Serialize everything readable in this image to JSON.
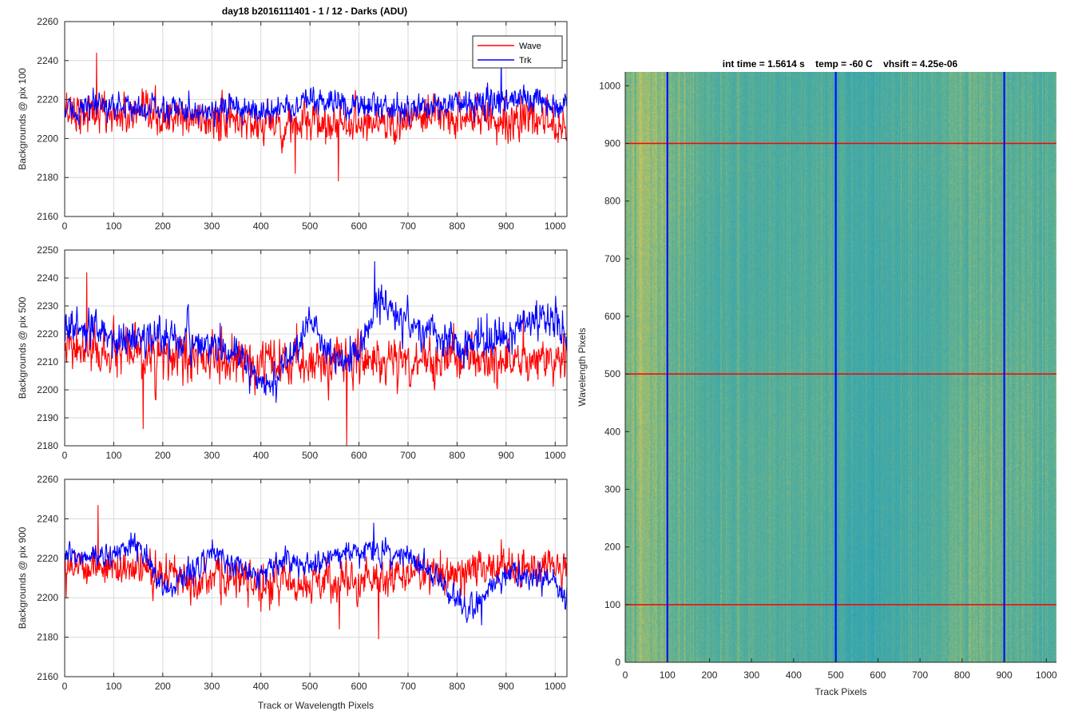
{
  "figure_title": "day18 b2016111401 - 1 / 12 - Darks (ADU)",
  "colors": {
    "wave": "#ff0000",
    "trk": "#0000ff",
    "grid": "#d9d9d9",
    "axis": "#262626",
    "image_yellow": "#c9c85a",
    "image_teal": "#2aa6b4",
    "image_green": "#5cae96"
  },
  "chart_data": [
    {
      "type": "line",
      "ylabel": "Backgrounds @ pix 100",
      "xlabel": "",
      "xlim": [
        0,
        1024
      ],
      "ylim": [
        2160,
        2260
      ],
      "xticks": [
        0,
        100,
        200,
        300,
        400,
        500,
        600,
        700,
        800,
        900,
        1000
      ],
      "yticks": [
        2160,
        2180,
        2200,
        2220,
        2240,
        2260
      ],
      "grid": true,
      "legend": "top-right",
      "series": [
        {
          "name": "Wave",
          "color": "#ff0000",
          "mean": 2210,
          "noise": 7.5,
          "profile": [
            [
              0,
              2215
            ],
            [
              100,
              2212
            ],
            [
              200,
              2210
            ],
            [
              300,
              2210
            ],
            [
              400,
              2208
            ],
            [
              500,
              2207
            ],
            [
              600,
              2209
            ],
            [
              700,
              2209
            ],
            [
              800,
              2212
            ],
            [
              900,
              2210
            ],
            [
              1024,
              2208
            ]
          ],
          "features": [
            [
              65,
              2244
            ],
            [
              558,
              2178
            ],
            [
              470,
              2182
            ]
          ]
        },
        {
          "name": "Trk",
          "color": "#0000ff",
          "mean": 2217,
          "noise": 5,
          "profile": [
            [
              0,
              2214
            ],
            [
              100,
              2217
            ],
            [
              200,
              2215
            ],
            [
              300,
              2215
            ],
            [
              400,
              2214
            ],
            [
              500,
              2218
            ],
            [
              600,
              2218
            ],
            [
              700,
              2215
            ],
            [
              800,
              2218
            ],
            [
              900,
              2220
            ],
            [
              1024,
              2217
            ]
          ],
          "features": [
            [
              890,
              2242
            ]
          ]
        }
      ]
    },
    {
      "type": "line",
      "ylabel": "Backgrounds @ pix 500",
      "xlabel": "",
      "xlim": [
        0,
        1024
      ],
      "ylim": [
        2180,
        2250
      ],
      "xticks": [
        0,
        100,
        200,
        300,
        400,
        500,
        600,
        700,
        800,
        900,
        1000
      ],
      "yticks": [
        2180,
        2190,
        2200,
        2210,
        2220,
        2230,
        2240,
        2250
      ],
      "grid": true,
      "series": [
        {
          "name": "Wave",
          "color": "#ff0000",
          "mean": 2211,
          "noise": 6,
          "profile": [
            [
              0,
              2214
            ],
            [
              100,
              2213
            ],
            [
              200,
              2211
            ],
            [
              300,
              2211
            ],
            [
              400,
              2208
            ],
            [
              500,
              2210
            ],
            [
              600,
              2211
            ],
            [
              700,
              2210
            ],
            [
              800,
              2212
            ],
            [
              900,
              2210
            ],
            [
              1024,
              2211
            ]
          ],
          "features": [
            [
              45,
              2242
            ],
            [
              575,
              2180
            ],
            [
              160,
              2186
            ]
          ]
        },
        {
          "name": "Trk",
          "color": "#0000ff",
          "mean": 2218,
          "noise": 4.5,
          "profile": [
            [
              0,
              2223
            ],
            [
              50,
              2221
            ],
            [
              100,
              2218
            ],
            [
              200,
              2219
            ],
            [
              300,
              2216
            ],
            [
              350,
              2212
            ],
            [
              400,
              2204
            ],
            [
              430,
              2202
            ],
            [
              460,
              2215
            ],
            [
              500,
              2223
            ],
            [
              550,
              2210
            ],
            [
              600,
              2214
            ],
            [
              640,
              2232
            ],
            [
              700,
              2224
            ],
            [
              800,
              2215
            ],
            [
              900,
              2220
            ],
            [
              980,
              2228
            ],
            [
              1024,
              2217
            ]
          ],
          "features": [
            [
              632,
              2246
            ],
            [
              410,
              2198
            ]
          ]
        }
      ]
    },
    {
      "type": "line",
      "ylabel": "Backgrounds @ pix 900",
      "xlabel": "Track or Wavelength Pixels",
      "xlim": [
        0,
        1024
      ],
      "ylim": [
        2160,
        2260
      ],
      "xticks": [
        0,
        100,
        200,
        300,
        400,
        500,
        600,
        700,
        800,
        900,
        1000
      ],
      "yticks": [
        2160,
        2180,
        2200,
        2220,
        2240,
        2260
      ],
      "grid": true,
      "series": [
        {
          "name": "Wave",
          "color": "#ff0000",
          "mean": 2212,
          "noise": 7,
          "profile": [
            [
              0,
              2218
            ],
            [
              100,
              2215
            ],
            [
              200,
              2212
            ],
            [
              300,
              2210
            ],
            [
              400,
              2207
            ],
            [
              500,
              2208
            ],
            [
              600,
              2208
            ],
            [
              700,
              2212
            ],
            [
              800,
              2214
            ],
            [
              900,
              2216
            ],
            [
              1024,
              2214
            ]
          ],
          "features": [
            [
              68,
              2247
            ],
            [
              640,
              2179
            ],
            [
              560,
              2184
            ]
          ]
        },
        {
          "name": "Trk",
          "color": "#0000ff",
          "mean": 2215,
          "noise": 4.5,
          "profile": [
            [
              0,
              2220
            ],
            [
              100,
              2222
            ],
            [
              150,
              2228
            ],
            [
              200,
              2204
            ],
            [
              250,
              2212
            ],
            [
              300,
              2222
            ],
            [
              400,
              2212
            ],
            [
              450,
              2218
            ],
            [
              500,
              2216
            ],
            [
              550,
              2222
            ],
            [
              600,
              2224
            ],
            [
              700,
              2222
            ],
            [
              750,
              2212
            ],
            [
              820,
              2194
            ],
            [
              900,
              2212
            ],
            [
              1000,
              2208
            ],
            [
              1024,
              2196
            ]
          ],
          "features": [
            [
              630,
              2238
            ],
            [
              850,
              2186
            ]
          ]
        }
      ]
    },
    {
      "type": "heatmap",
      "title": "int time = 1.5614 s    temp = -60 C    vhsift = 4.25e-06",
      "xlabel": "Track Pixels",
      "ylabel": "Wavelength Pixels",
      "xlim": [
        0,
        1024
      ],
      "ylim": [
        0,
        1024
      ],
      "xticks": [
        0,
        100,
        200,
        300,
        400,
        500,
        600,
        700,
        800,
        900,
        1000
      ],
      "yticks": [
        0,
        100,
        200,
        300,
        400,
        500,
        600,
        700,
        800,
        900,
        1000
      ],
      "marker_lines": {
        "vertical_track_pixels": [
          100,
          500,
          900
        ],
        "vertical_color": "#0000ff",
        "horizontal_wavelength_pixels": [
          100,
          500,
          900
        ],
        "horizontal_color": "#ff0000"
      },
      "structure": "vertical streaks; brighter yellow band near track 0-100, teal band near track 500-650, yellow near 800-900"
    }
  ]
}
